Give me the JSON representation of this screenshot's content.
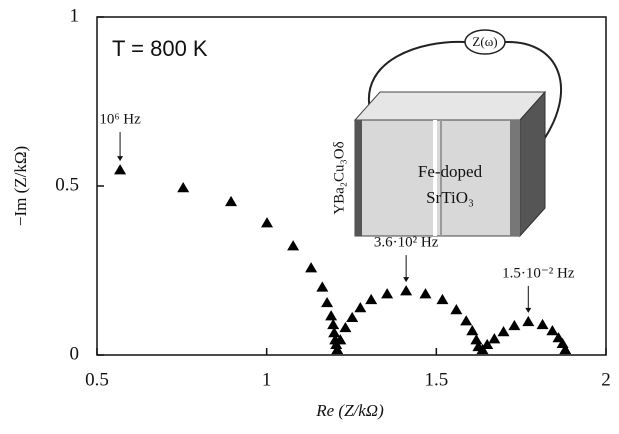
{
  "chart_data": {
    "type": "scatter",
    "title": "T = 800 K",
    "x_label": "Re (Z/kΩ)",
    "y_label": "−Im (Z/kΩ)",
    "xlim": [
      0.5,
      2
    ],
    "ylim": [
      0,
      1
    ],
    "xticks": [
      0.5,
      1,
      1.5,
      2
    ],
    "yticks": [
      0,
      0.5,
      1
    ],
    "color": "#000000",
    "x": [
      0.568,
      0.754,
      0.895,
      1.001,
      1.078,
      1.131,
      1.164,
      1.178,
      1.19,
      1.196,
      1.199,
      1.202,
      1.205,
      1.208,
      1.217,
      1.232,
      1.252,
      1.276,
      1.308,
      1.355,
      1.411,
      1.468,
      1.518,
      1.559,
      1.588,
      1.606,
      1.618,
      1.624,
      1.636,
      1.65,
      1.671,
      1.698,
      1.73,
      1.771,
      1.813,
      1.842,
      1.86,
      1.872,
      1.88
    ],
    "values": [
      0.547,
      0.494,
      0.453,
      0.39,
      0.322,
      0.257,
      0.2,
      0.154,
      0.115,
      0.089,
      0.065,
      0.044,
      0.03,
      0.015,
      0.044,
      0.08,
      0.11,
      0.139,
      0.163,
      0.18,
      0.189,
      0.18,
      0.163,
      0.133,
      0.1,
      0.071,
      0.044,
      0.024,
      0.015,
      0.03,
      0.047,
      0.068,
      0.086,
      0.098,
      0.089,
      0.071,
      0.05,
      0.033,
      0.015
    ],
    "annotations": [
      "10⁶ Hz",
      "3.6·10² Hz",
      "1.5·10⁻² Hz"
    ],
    "inset": {
      "lead_label": "Z(ω)",
      "electrode_label": "YBa₂Cu₃Oδ",
      "sample_label": [
        "Fe-doped",
        "SrTiO₃"
      ]
    }
  }
}
